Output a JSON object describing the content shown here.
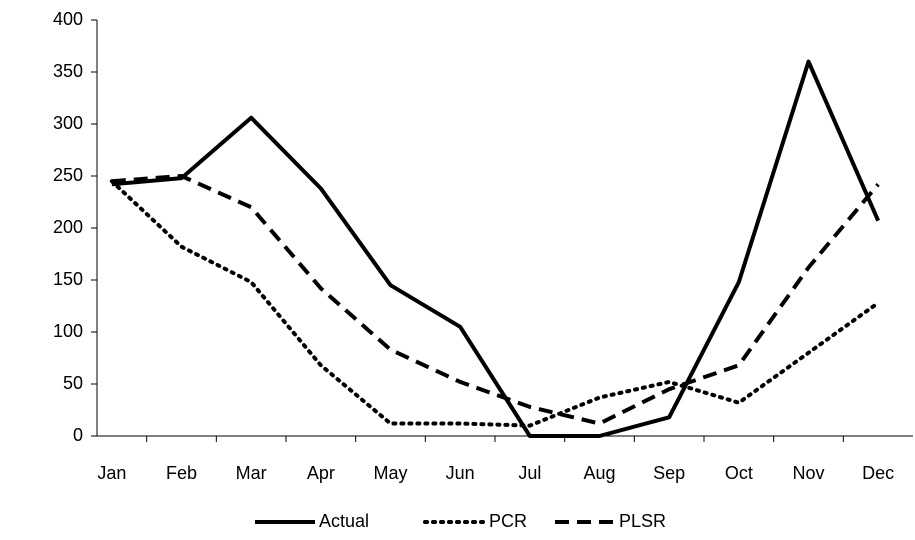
{
  "chart_data": {
    "type": "line",
    "categories": [
      "Jan",
      "Feb",
      "Mar",
      "Apr",
      "May",
      "Jun",
      "Jul",
      "Aug",
      "Sep",
      "Oct",
      "Nov",
      "Dec"
    ],
    "series": [
      {
        "name": "Actual",
        "color": "#000000",
        "dash": "solid",
        "values": [
          242,
          248,
          306,
          238,
          145,
          105,
          0,
          0,
          18,
          148,
          360,
          207
        ]
      },
      {
        "name": "PCR",
        "color": "#000000",
        "dash": "dotted",
        "values": [
          245,
          182,
          148,
          68,
          12,
          12,
          10,
          37,
          52,
          32,
          80,
          128
        ]
      },
      {
        "name": "PLSR",
        "color": "#000000",
        "dash": "dashed",
        "values": [
          245,
          250,
          220,
          142,
          83,
          52,
          28,
          12,
          45,
          68,
          162,
          242
        ]
      }
    ],
    "ylim": [
      0,
      400
    ],
    "yticks": [
      0,
      50,
      100,
      150,
      200,
      250,
      300,
      350,
      400
    ],
    "grid": false,
    "legend": "bottom"
  }
}
